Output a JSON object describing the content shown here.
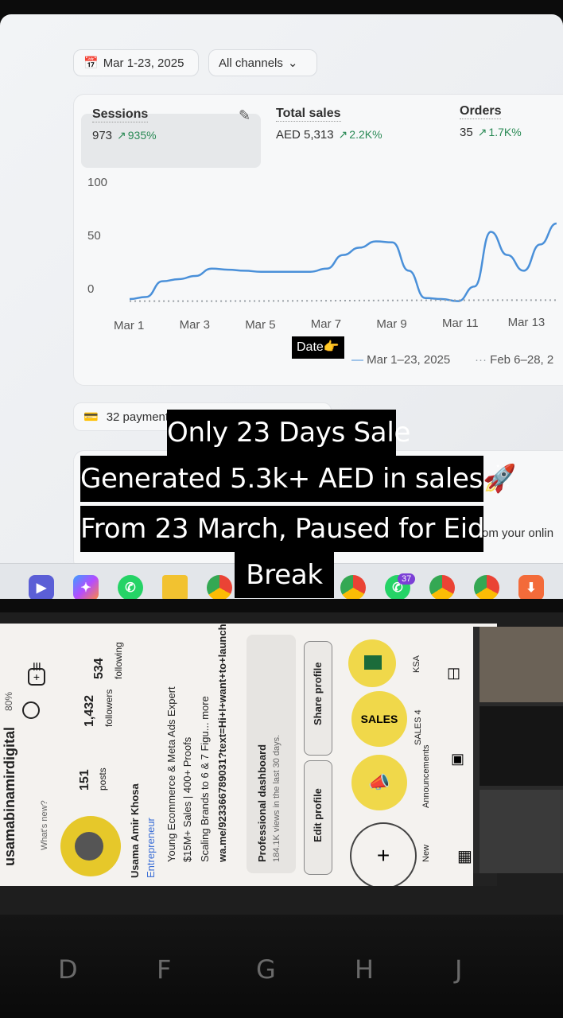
{
  "dashboard": {
    "date_range": "Mar 1-23, 2025",
    "channels": "All channels",
    "metrics": [
      {
        "label": "Sessions",
        "value": "973",
        "change": "935%"
      },
      {
        "label": "Total sales",
        "value": "AED 5,313",
        "change": "2.2K%"
      },
      {
        "label": "Orders",
        "value": "35",
        "change": "1.7K%"
      }
    ],
    "payments": "32 payments to capture",
    "online_fragment": "om your onlin"
  },
  "chart_data": {
    "type": "line",
    "categories": [
      "Mar 1",
      "Mar 3",
      "Mar 5",
      "Mar 7",
      "Mar 9",
      "Mar 11",
      "Mar 13"
    ],
    "y_ticks": [
      "100",
      "50",
      "0"
    ],
    "ylim": [
      0,
      100
    ],
    "series": [
      {
        "name": "Mar 1–23, 2025",
        "style": "solid",
        "color": "#4a90d9",
        "x": [
          1,
          1.5,
          2,
          2.5,
          3,
          3.5,
          4,
          4.5,
          5,
          5.5,
          6,
          6.5,
          7,
          7.5,
          8,
          8.5,
          9,
          9.5,
          10,
          10.5,
          11,
          11.5,
          12,
          12.5,
          13,
          13.5,
          14
        ],
        "values": [
          3,
          5,
          20,
          22,
          25,
          32,
          31,
          30,
          29,
          29,
          29,
          29,
          32,
          45,
          52,
          58,
          57,
          30,
          4,
          3,
          1,
          15,
          67,
          45,
          30,
          55,
          75
        ]
      },
      {
        "name": "Feb 6–28, 2",
        "style": "dotted",
        "color": "#9aa0a6",
        "x": [
          1,
          14
        ],
        "values": [
          1,
          2
        ]
      }
    ],
    "legend_prefix": "Date"
  },
  "taskbar_badge": "37",
  "captions": [
    "Only 23 Days Sale",
    "Generated 5.3k+ AED in sales",
    "From 23 March, Paused for Eid",
    "Break"
  ],
  "phone": {
    "username": "usamabinamirdigital",
    "posts": "151",
    "posts_label": "posts",
    "followers": "1,432",
    "followers_label": "followers",
    "following": "534",
    "following_label": "following",
    "whats_new": "What's new?",
    "name": "Usama Amir Khosa",
    "category": "Entrepreneur",
    "bio": [
      "Young Ecommerce & Meta Ads Expert",
      "$15M+ Sales | 400+ Proofs",
      "Scaling Brands to 6 & 7 Figu... more",
      "wa.me/923366789031?text=Hi+I+want+to+launch+..."
    ],
    "dashboard_title": "Professional dashboard",
    "dashboard_sub": "184.1K views in the last 30 days.",
    "edit_profile": "Edit profile",
    "share_profile": "Share profile",
    "highlights": [
      "New",
      "Announcements",
      "SALES 4",
      "KSA"
    ],
    "battery": "80%"
  },
  "keyboard": [
    "D",
    "F",
    "G",
    "H",
    "J"
  ]
}
